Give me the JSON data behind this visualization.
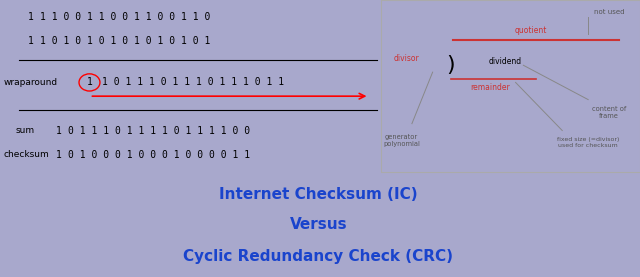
{
  "bg_color": "#a8a8cc",
  "left_panel_bg": "#c0c0d8",
  "right_panel_bg": "#ffffff",
  "bottom_panel_bg": "#ffffff",
  "bottom_panel_border": "#7ab648",
  "title_line1": "Internet Checksum (IC)",
  "title_line2": "Versus",
  "title_line3": "Cyclic Redundancy Check (CRC)",
  "title_color": "#1a44cc",
  "row1_prefix": "1",
  "row1_bits": "1 1 0 0 1 1 0 0 1 1 0 0 1 1 0",
  "row2_prefix": "1",
  "row2_bits": "1 0 1 0 1 0 1 0 1 0 1 0 1 0 1",
  "wrap_circle": "1",
  "wrap_bits": "1 0 1 1 1 0 1 1 1 0 1 1 1 0 1 1",
  "sum_prefix": "1",
  "sum_bits": "0 1 1 1 0 1 1 1 1 0 1 1 1 1 0 0",
  "checksum_prefix": "1",
  "checksum_bits": "0 1 0 0 0 1 0 0 0 1 0 0 0 0 1 1"
}
